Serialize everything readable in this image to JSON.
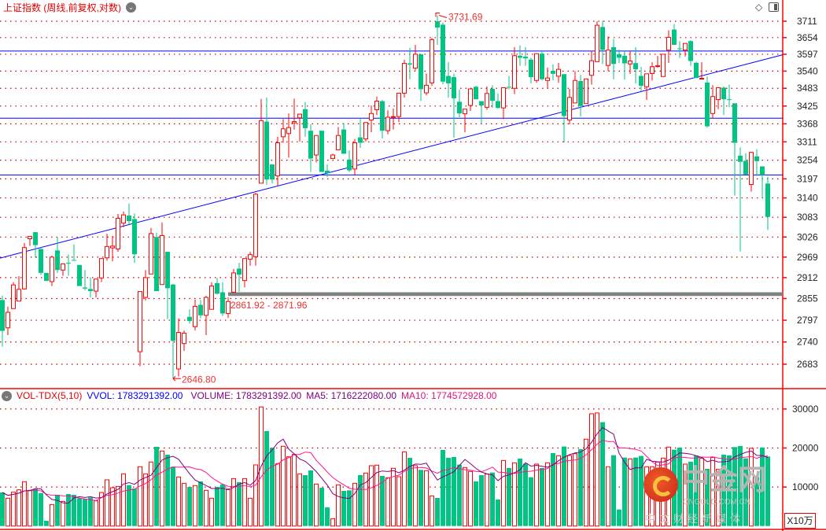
{
  "header": {
    "title": "上证指数 (周线,前复权,对数)",
    "title_menu_icon": "chevron-down-circle-icon",
    "top_icons": [
      "diamond-icon",
      "panel-toggle-icon"
    ]
  },
  "volume_header": {
    "menu_icon": "chevron-down-circle-icon",
    "indicator": "VOL-TDX(5,10)",
    "vvol": "VVOL: 1783291392.00",
    "volume": "VOLUME: 1783291392.00",
    "ma5": "MA5: 1716222080.00",
    "ma10": "MA10: 1774572928.00"
  },
  "unit_label": "X10万",
  "watermark": {
    "name": "中金网",
    "url": "CNGOLD.COM.CN",
    "tagline": "中文财经新媒体"
  },
  "colors": {
    "up": "#ff0000",
    "down": "#00c484",
    "grid": "#cc0000",
    "axis": "#ff0000",
    "lines": "#0000ff",
    "support_band": "#808080",
    "vvol": "#0000ff",
    "volume_text": "#800080",
    "ma5": "#800080",
    "ma10": "#ff1493"
  },
  "chart_data": [
    {
      "type": "candlestick",
      "title": "上证指数 (周线,前复权,对数)",
      "scale": "log",
      "grid": true,
      "y_ticks": [
        3711,
        3654,
        3597,
        3540,
        3483,
        3425,
        3368,
        3311,
        3254,
        3197,
        3140,
        3083,
        3026,
        2969,
        2912,
        2855,
        2797,
        2740,
        2683
      ],
      "ylim": [
        2610,
        3770
      ],
      "ohlc_fields": [
        "open",
        "high",
        "low",
        "close"
      ],
      "candles": [
        [
          2851,
          2863,
          2728,
          2769
        ],
        [
          2777,
          2833,
          2758,
          2818
        ],
        [
          2828,
          2899,
          2828,
          2892
        ],
        [
          2848,
          2916,
          2848,
          2880
        ],
        [
          2881,
          3009,
          2879,
          2996
        ],
        [
          3021,
          3028,
          3001,
          3028
        ],
        [
          3040,
          3040,
          2967,
          3003
        ],
        [
          2992,
          2997,
          2919,
          2925
        ],
        [
          2925,
          2925,
          2903,
          2903
        ],
        [
          2901,
          2973,
          2889,
          2969
        ],
        [
          2988,
          3025,
          2925,
          2933
        ],
        [
          2933,
          2950,
          2917,
          2950
        ],
        [
          2953,
          2976,
          2917,
          2951
        ],
        [
          2961,
          3005,
          2959,
          2959
        ],
        [
          2947,
          2947,
          2889,
          2889
        ],
        [
          2885,
          2933,
          2877,
          2882
        ],
        [
          2881,
          2913,
          2858,
          2875
        ],
        [
          2875,
          2908,
          2858,
          2908
        ],
        [
          2911,
          2965,
          2900,
          2965
        ],
        [
          2967,
          3035,
          2959,
          2999
        ],
        [
          2995,
          3029,
          2957,
          3000
        ],
        [
          2992,
          3093,
          2984,
          3080
        ],
        [
          3066,
          3100,
          3054,
          3090
        ],
        [
          3088,
          3124,
          3062,
          3072
        ],
        [
          3078,
          3094,
          2953,
          2977
        ],
        [
          2715,
          2874,
          2678,
          2874
        ],
        [
          2858,
          2933,
          2850,
          2912
        ],
        [
          2922,
          3052,
          2922,
          3036
        ],
        [
          3026,
          3038,
          2875,
          2875
        ],
        [
          2893,
          3068,
          2893,
          3030
        ],
        [
          2984,
          2984,
          2800,
          2883
        ],
        [
          2893,
          2895,
          2646.8,
          2743
        ],
        [
          2671,
          2802,
          2652,
          2765
        ],
        [
          2736,
          2770,
          2717,
          2763
        ],
        [
          2806,
          2826,
          2788,
          2795
        ],
        [
          2780,
          2852,
          2770,
          2834
        ],
        [
          2838,
          2851,
          2802,
          2810
        ],
        [
          2810,
          2863,
          2758,
          2858
        ],
        [
          2826,
          2899,
          2826,
          2889
        ],
        [
          2897,
          2911,
          2866,
          2868
        ],
        [
          2872,
          2899,
          2808,
          2815
        ],
        [
          2815,
          2858,
          2803,
          2847
        ],
        [
          2872,
          2936,
          2872,
          2925
        ],
        [
          2937,
          2953,
          2873,
          2920
        ],
        [
          2904,
          2965,
          2885,
          2965
        ],
        [
          2963,
          2984,
          2945,
          2976
        ],
        [
          2970,
          3155,
          2945,
          3151
        ],
        [
          3184,
          3448,
          3184,
          3378
        ],
        [
          3375,
          3453,
          3179,
          3195
        ],
        [
          3241,
          3241,
          3183,
          3195
        ],
        [
          3206,
          3327,
          3175,
          3308
        ],
        [
          3327,
          3383,
          3308,
          3352
        ],
        [
          3337,
          3401,
          3262,
          3356
        ],
        [
          3371,
          3449,
          3350,
          3375
        ],
        [
          3387,
          3399,
          3312,
          3399
        ],
        [
          3415,
          3438,
          3327,
          3354
        ],
        [
          3346,
          3366,
          3218,
          3259
        ],
        [
          3270,
          3331,
          3247,
          3331
        ],
        [
          3346,
          3346,
          3218,
          3218
        ],
        [
          3222,
          3241,
          3202,
          3214
        ],
        [
          3259,
          3274,
          3259,
          3270
        ],
        [
          3286,
          3358,
          3286,
          3331
        ],
        [
          3350,
          3370,
          3274,
          3274
        ],
        [
          3256,
          3284,
          3218,
          3223
        ],
        [
          3227,
          3320,
          3210,
          3308
        ],
        [
          3325,
          3383,
          3292,
          3308
        ],
        [
          3320,
          3372,
          3312,
          3372
        ],
        [
          3380,
          3427,
          3341,
          3401
        ],
        [
          3413,
          3456,
          3396,
          3441
        ],
        [
          3441,
          3445,
          3322,
          3346
        ],
        [
          3346,
          3411,
          3335,
          3389
        ],
        [
          3389,
          3417,
          3350,
          3391
        ],
        [
          3391,
          3467,
          3374,
          3467
        ],
        [
          3467,
          3578,
          3453,
          3566
        ],
        [
          3566,
          3619,
          3513,
          3562
        ],
        [
          3550,
          3629,
          3542,
          3597
        ],
        [
          3597,
          3597,
          3442,
          3480
        ],
        [
          3468,
          3532,
          3460,
          3493
        ],
        [
          3501,
          3653,
          3491,
          3647
        ],
        [
          3711,
          3731.69,
          3629,
          3689
        ],
        [
          3699,
          3707,
          3497,
          3505
        ],
        [
          3524,
          3571,
          3452,
          3499
        ],
        [
          3520,
          3532,
          3324,
          3450
        ],
        [
          3439,
          3479,
          3389,
          3401
        ],
        [
          3400,
          3415,
          3341,
          3415
        ],
        [
          3427,
          3481,
          3409,
          3481
        ],
        [
          3488,
          3491,
          3447,
          3447
        ],
        [
          3441,
          3441,
          3370,
          3427
        ],
        [
          3421,
          3489,
          3413,
          3466
        ],
        [
          3481,
          3493,
          3419,
          3442
        ],
        [
          3441,
          3466,
          3417,
          3419
        ],
        [
          3419,
          3485,
          3383,
          3485
        ],
        [
          3488,
          3524,
          3479,
          3486
        ],
        [
          3483,
          3621,
          3464,
          3592
        ],
        [
          3592,
          3627,
          3558,
          3585
        ],
        [
          3589,
          3621,
          3558,
          3583
        ],
        [
          3579,
          3585,
          3499,
          3520
        ],
        [
          3509,
          3599,
          3501,
          3599
        ],
        [
          3599,
          3611,
          3509,
          3513
        ],
        [
          3509,
          3552,
          3483,
          3517
        ],
        [
          3541,
          3563,
          3509,
          3531
        ],
        [
          3523,
          3568,
          3501,
          3546
        ],
        [
          3530,
          3530,
          3309,
          3393
        ],
        [
          3380,
          3481,
          3366,
          3453
        ],
        [
          3435,
          3540,
          3435,
          3509
        ],
        [
          3507,
          3528,
          3391,
          3425
        ],
        [
          3433,
          3514,
          3433,
          3514
        ],
        [
          3526,
          3609,
          3495,
          3575
        ],
        [
          3572,
          3711,
          3572,
          3697
        ],
        [
          3691,
          3713,
          3564,
          3612
        ],
        [
          3559,
          3658,
          3541,
          3611
        ],
        [
          3621,
          3649,
          3513,
          3564
        ],
        [
          3597,
          3613,
          3567,
          3585
        ],
        [
          3592,
          3611,
          3511,
          3566
        ],
        [
          3564,
          3608,
          3531,
          3574
        ],
        [
          3567,
          3621,
          3499,
          3546
        ],
        [
          3524,
          3554,
          3475,
          3491
        ],
        [
          3488,
          3531,
          3445,
          3531
        ],
        [
          3532,
          3570,
          3509,
          3555
        ],
        [
          3556,
          3591,
          3552,
          3558
        ],
        [
          3522,
          3597,
          3522,
          3597
        ],
        [
          3611,
          3679,
          3568,
          3655
        ],
        [
          3682,
          3701,
          3629,
          3629
        ],
        [
          3617,
          3642,
          3584,
          3615
        ],
        [
          3611,
          3634,
          3589,
          3634
        ],
        [
          3642,
          3645,
          3558,
          3574
        ],
        [
          3568,
          3572,
          3517,
          3517
        ],
        [
          3514,
          3570,
          3513,
          3516
        ],
        [
          3502,
          3522,
          3356,
          3360
        ],
        [
          3401,
          3493,
          3385,
          3456
        ],
        [
          3446,
          3485,
          3415,
          3485
        ],
        [
          3485,
          3489,
          3396,
          3447
        ],
        [
          3447,
          3495,
          3421,
          3445
        ],
        [
          3434,
          3434,
          3147,
          3308
        ],
        [
          3268,
          3294,
          2985,
          3249
        ],
        [
          3252,
          3276,
          3210,
          3210
        ],
        [
          3180,
          3280,
          3159,
          3278
        ],
        [
          3266,
          3288,
          3206,
          3251
        ],
        [
          3235,
          3235,
          3140,
          3209
        ],
        [
          3183,
          3204,
          3046,
          3084
        ]
      ],
      "horizontal_lines": [
        3608,
        3386,
        3209
      ],
      "trendline": {
        "from": [
          0,
          2968
        ],
        "to": [
          139,
          3582
        ]
      },
      "support_band": [
        2861.92,
        2871.96
      ],
      "annotations": {
        "high": {
          "index": 79,
          "value": 3731.69,
          "label": "3731.69"
        },
        "low": {
          "index": 31,
          "value": 2646.8,
          "label": "2646.80"
        },
        "band": {
          "index": 41,
          "label": "2861.92 - 2871.96"
        }
      }
    },
    {
      "type": "bar",
      "title": "VOL-TDX(5,10)",
      "unit": "X10万",
      "y_ticks": [
        10000,
        20000,
        30000
      ],
      "ylim": [
        0,
        30300
      ],
      "series": [
        {
          "name": "VOLUME",
          "values": [
            8600,
            7130,
            8670,
            9280,
            11370,
            9150,
            9550,
            8470,
            1350,
            5510,
            8000,
            6320,
            8200,
            8000,
            7130,
            6930,
            7330,
            6460,
            8600,
            11840,
            9820,
            10150,
            13380,
            10490,
            9620,
            15200,
            13380,
            16410,
            20310,
            19230,
            18290,
            15200,
            12580,
            10960,
            10020,
            10360,
            11430,
            9150,
            7130,
            10020,
            10690,
            9480,
            12170,
            11230,
            12170,
            7130,
            15670,
            30530,
            24340,
            20040,
            16000,
            20440,
            17750,
            18360,
            13380,
            13050,
            14260,
            10760,
            9820,
            4770,
            1880,
            10560,
            9010,
            9150,
            10960,
            13050,
            13580,
            15470,
            15600,
            12850,
            12370,
            14800,
            12640,
            19030,
            17490,
            15470,
            14390,
            14190,
            7730,
            7200,
            19500,
            17490,
            17690,
            15740,
            15000,
            13990,
            11430,
            13050,
            13320,
            13720,
            6790,
            16810,
            14860,
            16210,
            17280,
            16000,
            12510,
            15870,
            14860,
            16210,
            18700,
            18020,
            20380,
            18090,
            18560,
            19700,
            22260,
            28780,
            28990,
            26630,
            15200,
            18160,
            4240,
            17550,
            17220,
            17550,
            17960,
            15200,
            15200,
            16410,
            17420,
            20240,
            19570,
            20110,
            15870,
            16480,
            18090,
            17350,
            14660,
            17550,
            14530,
            18290,
            18090,
            20240,
            20510,
            17350,
            19910,
            12510,
            20110,
            17833
          ]
        }
      ],
      "moving_averages": [
        "MA5",
        "MA10"
      ]
    }
  ]
}
